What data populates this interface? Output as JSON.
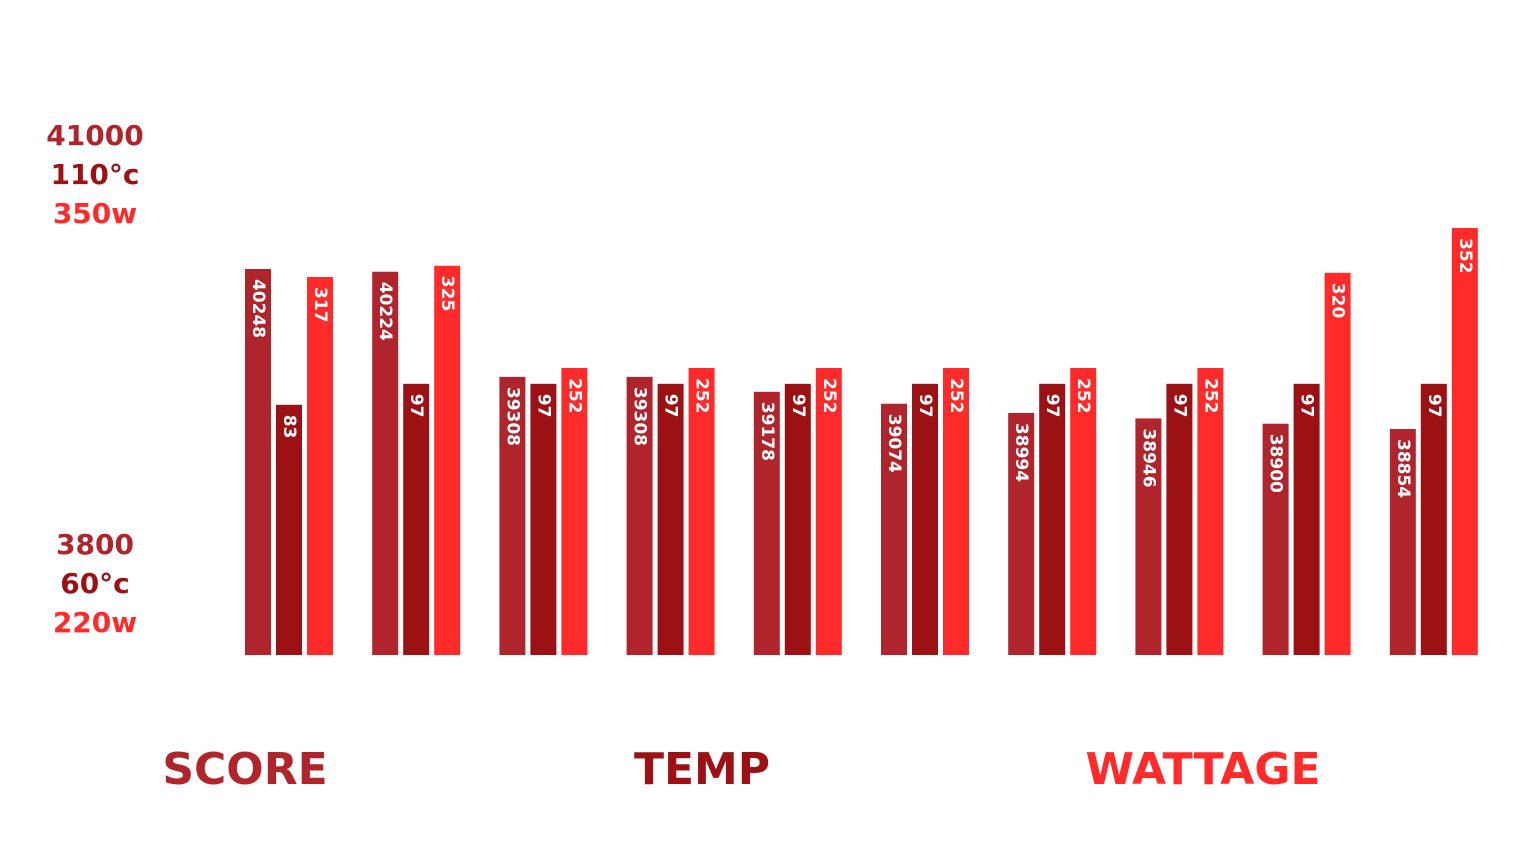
{
  "chart_data": {
    "type": "bar",
    "axis_labels": {
      "top": [
        "41000",
        "110°c",
        "350w"
      ],
      "bottom": [
        "3800",
        "60°c",
        "220w"
      ]
    },
    "series": [
      {
        "name": "SCORE",
        "color": "#b0252b",
        "ylim": [
          36885,
          40605
        ],
        "values": [
          40248,
          40224,
          39308,
          39308,
          39178,
          39074,
          38994,
          38946,
          38900,
          38854
        ]
      },
      {
        "name": "TEMP",
        "color": "#9b1114",
        "ylim": [
          -84,
          201
        ],
        "values": [
          83,
          97,
          97,
          97,
          97,
          97,
          97,
          97,
          97,
          97
        ]
      },
      {
        "name": "WATTAGE",
        "color": "#ff2a2a",
        "ylim": [
          47,
          352
        ],
        "values": [
          317,
          325,
          252,
          252,
          252,
          252,
          252,
          252,
          320,
          352
        ]
      }
    ]
  }
}
